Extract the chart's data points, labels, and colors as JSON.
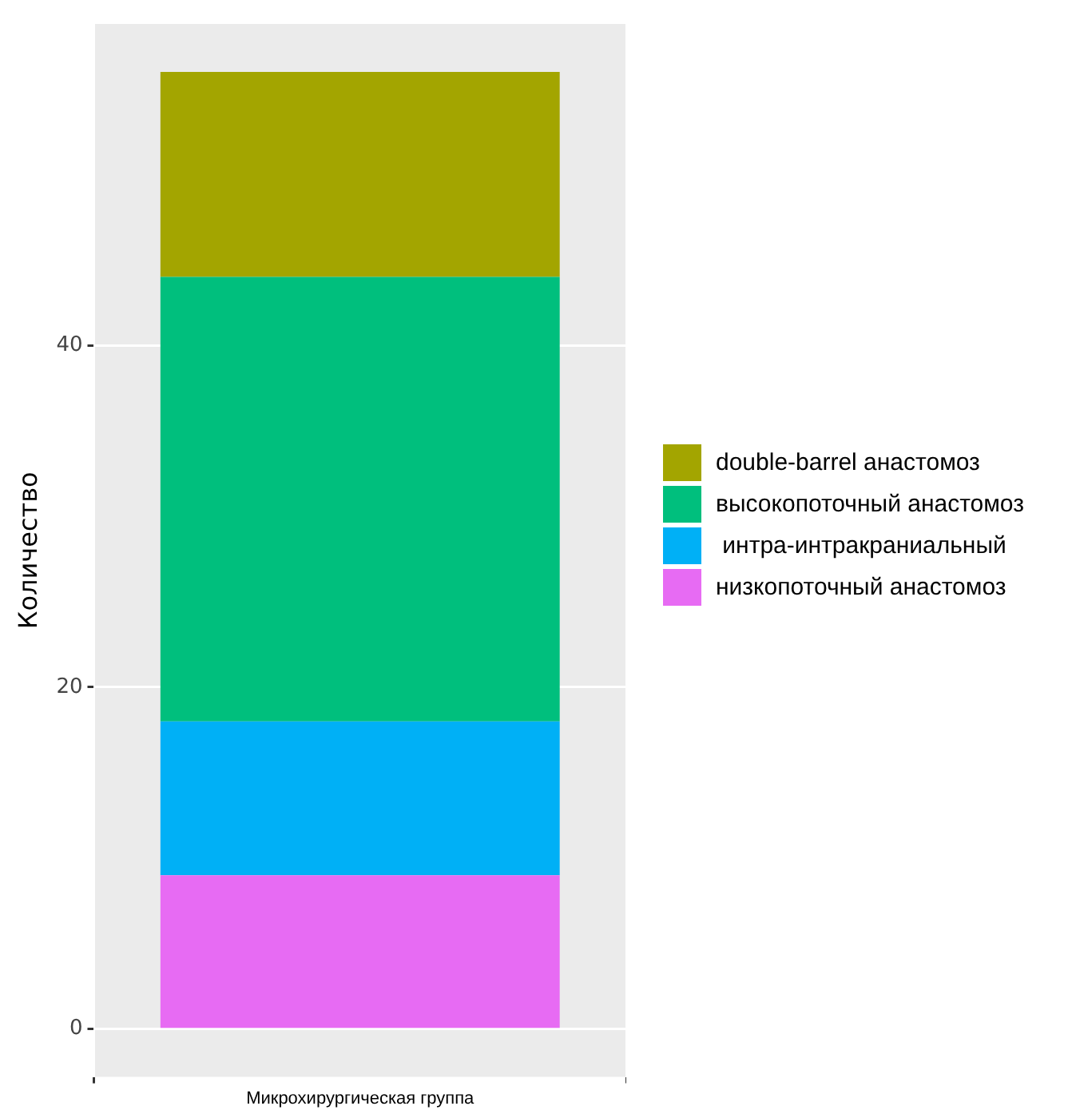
{
  "chart_data": {
    "type": "bar",
    "stacked": true,
    "categories": [
      "Микрохирургическая группа"
    ],
    "ylabel": "Количество",
    "series": [
      {
        "name": "низкопоточный анастомоз",
        "color": "#e76bf3",
        "values": [
          9
        ]
      },
      {
        "name": " интра-интракраниальный",
        "color": "#00b0f6",
        "values": [
          9
        ]
      },
      {
        "name": "высокопоточный анастомоз",
        "color": "#00bf7d",
        "values": [
          26
        ]
      },
      {
        "name": "double-barrel анастомоз",
        "color": "#a3a500",
        "values": [
          12
        ]
      }
    ],
    "ylim": [
      -2.8,
      58.8
    ],
    "yticks": [
      0,
      20,
      40
    ],
    "grid": true,
    "legend": "right"
  }
}
